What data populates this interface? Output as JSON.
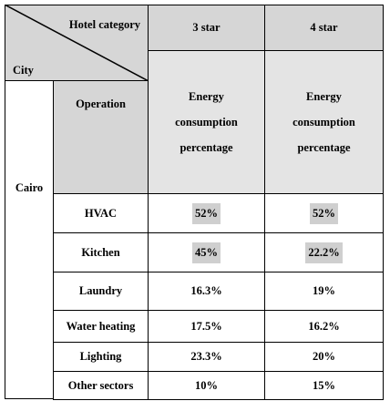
{
  "table": {
    "corner": {
      "column_label": "Hotel category",
      "row_label": "City"
    },
    "columns": [
      "3 star",
      "4 star"
    ],
    "metric_headers": [
      "Energy consumption percentage",
      "Energy consumption percentage"
    ],
    "city": "Cairo",
    "operation_header": "Operation",
    "rows": [
      [
        "HVAC",
        "52%",
        "52%"
      ],
      [
        "Kitchen",
        "45%",
        "22.2%"
      ],
      [
        "Laundry",
        "16.3%",
        "19%"
      ],
      [
        "Water heating",
        "17.5%",
        "16.2%"
      ],
      [
        "Lighting",
        "23.3%",
        "20%"
      ],
      [
        "Other sectors",
        "10%",
        "15%"
      ]
    ]
  }
}
